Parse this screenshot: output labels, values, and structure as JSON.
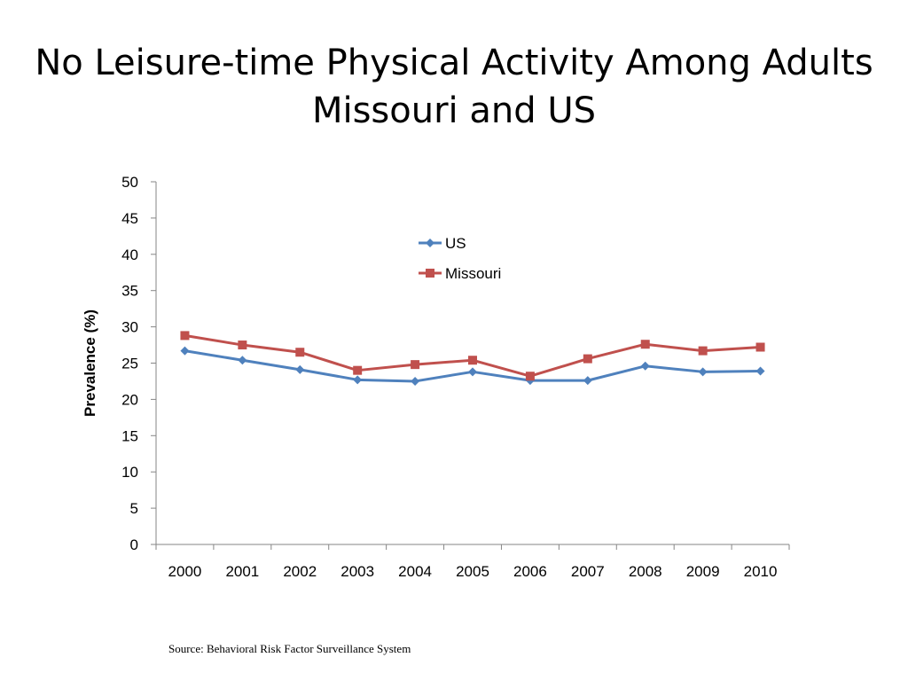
{
  "slide": {
    "title_line1": "No Leisure-time Physical Activity Among Adults",
    "title_line2": "Missouri and US",
    "source": "Source: Behavioral Risk Factor Surveillance System"
  },
  "colors": {
    "us": "#4F81BD",
    "missouri": "#C0504D",
    "axis": "#868686"
  },
  "chart_data": {
    "type": "line",
    "title": "No Leisure-time Physical Activity Among Adults Missouri and US",
    "xlabel": "",
    "ylabel": "Prevalence (%)",
    "categories": [
      "2000",
      "2001",
      "2002",
      "2003",
      "2004",
      "2005",
      "2006",
      "2007",
      "2008",
      "2009",
      "2010"
    ],
    "ylim": [
      0,
      50
    ],
    "yticks": [
      0,
      5,
      10,
      15,
      20,
      25,
      30,
      35,
      40,
      45,
      50
    ],
    "grid": false,
    "legend": "top-center",
    "series": [
      {
        "name": "US",
        "marker": "diamond",
        "values": [
          26.7,
          25.4,
          24.1,
          22.7,
          22.5,
          23.8,
          22.6,
          22.6,
          24.6,
          23.8,
          23.9
        ]
      },
      {
        "name": "Missouri",
        "marker": "square",
        "values": [
          28.8,
          27.5,
          26.5,
          24.0,
          24.8,
          25.4,
          23.2,
          25.6,
          27.6,
          26.7,
          27.2
        ]
      }
    ]
  }
}
